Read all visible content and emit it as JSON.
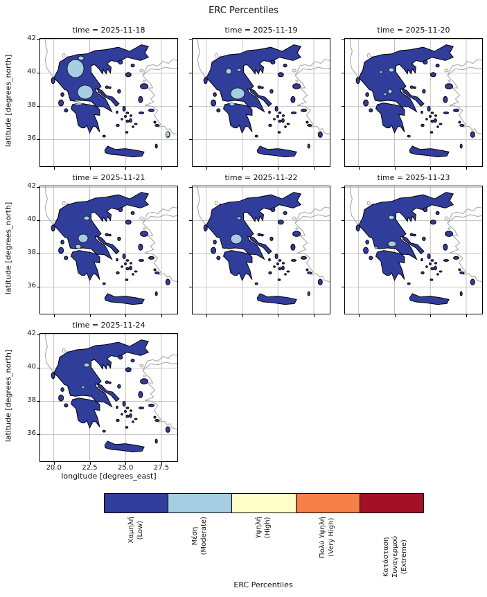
{
  "chart_data": {
    "type": "heatmap",
    "title": "ERC Percentiles",
    "xlabel": "longitude [degrees_east]",
    "ylabel": "latitude [degrees_north]",
    "x_ticks": [
      "20.0",
      "22.5",
      "25.0",
      "27.5"
    ],
    "y_ticks": [
      "42",
      "40",
      "38",
      "36"
    ],
    "xlim": [
      19.0,
      28.65
    ],
    "ylim": [
      34.4,
      42.1
    ],
    "grid": true,
    "facets": [
      {
        "title": "time = 2025-11-18",
        "dominant_class": "Χαμηλή (Low)",
        "moderate_patches": [
          [
            52,
            44,
            12,
            13
          ],
          [
            66,
            78,
            11,
            10
          ],
          [
            56,
            93,
            7,
            4
          ],
          [
            60,
            29,
            4,
            3
          ],
          [
            185,
            139,
            3,
            4
          ]
        ]
      },
      {
        "title": "time = 2025-11-19",
        "dominant_class": "Χαμηλή (Low)",
        "moderate_patches": [
          [
            66,
            80,
            10,
            8
          ],
          [
            53,
            48,
            4,
            4
          ],
          [
            58,
            95,
            4,
            3
          ],
          [
            68,
            46,
            3,
            2
          ]
        ]
      },
      {
        "title": "time = 2025-11-20",
        "dominant_class": "Χαμηλή (Low)",
        "moderate_patches": [
          [
            68,
            46,
            4,
            3
          ],
          [
            66,
            77,
            3,
            3
          ],
          [
            59,
            81,
            2,
            2
          ],
          [
            53,
            49,
            2,
            2
          ]
        ]
      },
      {
        "title": "time = 2025-11-21",
        "dominant_class": "Χαμηλή (Low)",
        "moderate_patches": [
          [
            68,
            47,
            4,
            3
          ],
          [
            63,
            76,
            7,
            6
          ],
          [
            56,
            88,
            4,
            3
          ]
        ]
      },
      {
        "title": "time = 2025-11-22",
        "dominant_class": "Χαμηλή (Low)",
        "moderate_patches": [
          [
            68,
            47,
            3,
            2
          ],
          [
            64,
            77,
            8,
            7
          ],
          [
            50,
            92,
            3,
            2
          ]
        ]
      },
      {
        "title": "time = 2025-11-23",
        "dominant_class": "Χαμηλή (Low)",
        "moderate_patches": [
          [
            68,
            46,
            4,
            3
          ],
          [
            69,
            84,
            6,
            4
          ],
          [
            45,
            90,
            3,
            2
          ]
        ]
      },
      {
        "title": "time = 2025-11-24",
        "dominant_class": "Χαμηλή (Low)",
        "moderate_patches": [
          [
            68,
            46,
            4,
            3
          ],
          [
            63,
            78,
            2,
            2
          ]
        ]
      }
    ],
    "colorbar": {
      "label": "ERC Percentiles",
      "classes": [
        {
          "label": "Χαμηλή\n(Low)",
          "color": "#313d9b"
        },
        {
          "label": "Μέση\n(Moderate)",
          "color": "#a5cee3"
        },
        {
          "label": "Υψηλή\n(High)",
          "color": "#ffffc8"
        },
        {
          "label": "Πολύ Υψηλή\n(Very High)",
          "color": "#f58049"
        },
        {
          "label": "Κατάσταση Συναγερμού\n(Extreme)",
          "color": "#a31126"
        }
      ]
    }
  }
}
